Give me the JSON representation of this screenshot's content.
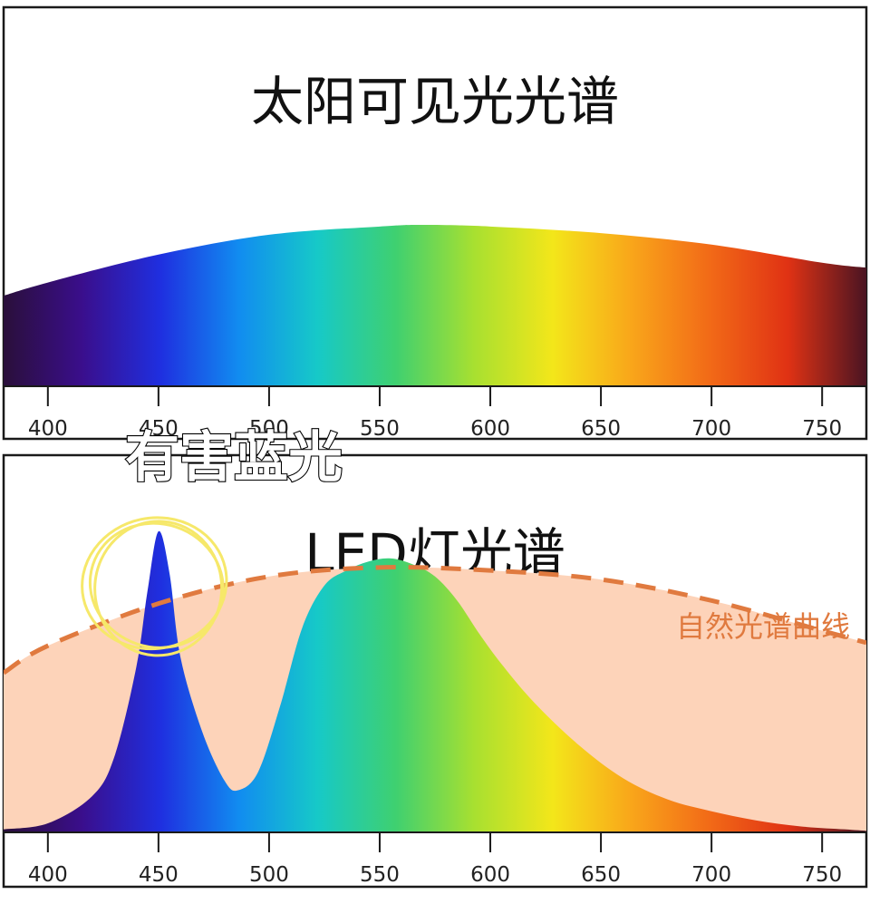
{
  "colors": {
    "spectrum": [
      "#2a0f3a",
      "#3a0e8c",
      "#1f2fe0",
      "#118cf0",
      "#16c9c8",
      "#3fd070",
      "#a8e030",
      "#f3e61a",
      "#f9a61a",
      "#f26a17",
      "#e03214",
      "#4a1422"
    ],
    "natural_fill": "#fdd3b9",
    "natural_line": "#e07a3f",
    "highlight_circle": "#f6e86a"
  },
  "chart_data": [
    {
      "type": "area",
      "title": "太阳可见光光谱",
      "xlim": [
        380,
        770
      ],
      "x": [
        380,
        400,
        450,
        500,
        550,
        570,
        600,
        650,
        700,
        750,
        770
      ],
      "values": [
        0.55,
        0.63,
        0.8,
        0.92,
        0.97,
        0.98,
        0.97,
        0.93,
        0.86,
        0.75,
        0.72
      ],
      "ylim": [
        0,
        1
      ],
      "x_ticks": [
        400,
        450,
        500,
        550,
        600,
        650,
        700,
        750
      ],
      "tick_labels": [
        "400",
        "450",
        "500",
        "550",
        "600",
        "650",
        "700",
        "750"
      ],
      "grid": false
    },
    {
      "type": "area",
      "title": "LED灯光谱",
      "xlim": [
        380,
        770
      ],
      "ylim": [
        0,
        1
      ],
      "series": [
        {
          "name": "自然光谱曲线",
          "style": "dashed",
          "x": [
            380,
            400,
            450,
            500,
            550,
            600,
            650,
            700,
            750,
            770
          ],
          "values": [
            0.53,
            0.62,
            0.76,
            0.85,
            0.88,
            0.87,
            0.84,
            0.77,
            0.67,
            0.63
          ]
        },
        {
          "name": "LED",
          "x": [
            380,
            400,
            420,
            430,
            440,
            445,
            450,
            455,
            460,
            470,
            480,
            486,
            495,
            505,
            515,
            525,
            535,
            545,
            555,
            565,
            575,
            585,
            595,
            605,
            620,
            640,
            660,
            680,
            700,
            720,
            740,
            760,
            770
          ],
          "values": [
            0.01,
            0.03,
            0.12,
            0.25,
            0.55,
            0.8,
            1.0,
            0.86,
            0.58,
            0.33,
            0.17,
            0.14,
            0.2,
            0.42,
            0.68,
            0.82,
            0.87,
            0.9,
            0.91,
            0.89,
            0.85,
            0.77,
            0.66,
            0.56,
            0.43,
            0.29,
            0.18,
            0.11,
            0.07,
            0.04,
            0.02,
            0.01,
            0.005
          ]
        }
      ],
      "annotations": {
        "harmful_blue": "有害蓝光",
        "natural_curve": "自然光谱曲线"
      },
      "x_ticks": [
        400,
        450,
        500,
        550,
        600,
        650,
        700,
        750
      ],
      "tick_labels": [
        "400",
        "450",
        "500",
        "550",
        "600",
        "650",
        "700",
        "750"
      ],
      "grid": false
    }
  ]
}
